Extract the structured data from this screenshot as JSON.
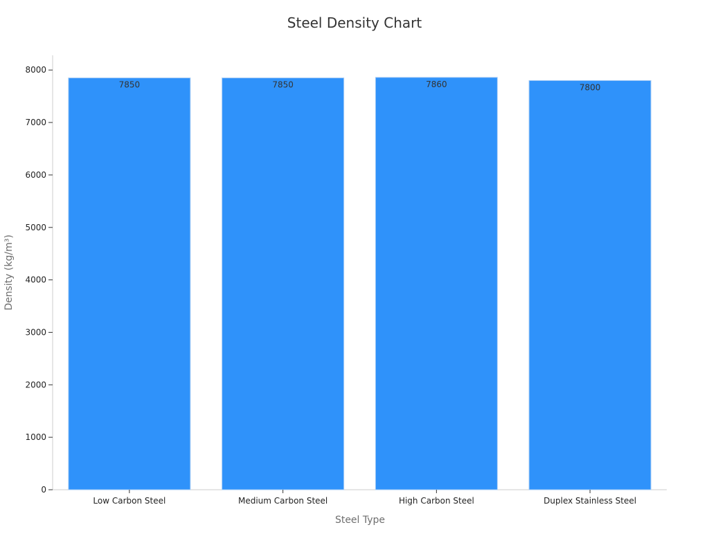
{
  "chart_data": {
    "type": "bar",
    "title": "Steel Density Chart",
    "xlabel": "Steel Type",
    "ylabel": "Density (kg/m³)",
    "categories": [
      "Low Carbon Steel",
      "Medium Carbon Steel",
      "High Carbon Steel",
      "Duplex Stainless Steel"
    ],
    "values": [
      7850,
      7850,
      7860,
      7800
    ],
    "data_labels": [
      "7850",
      "7850",
      "7860",
      "7800"
    ],
    "yticks": [
      0,
      1000,
      2000,
      3000,
      4000,
      5000,
      6000,
      7000,
      8000
    ],
    "ylim": [
      0,
      8280
    ],
    "grid": false,
    "bar_color": "#2f92fa",
    "bar_edge_color": "#a9cdf5"
  }
}
